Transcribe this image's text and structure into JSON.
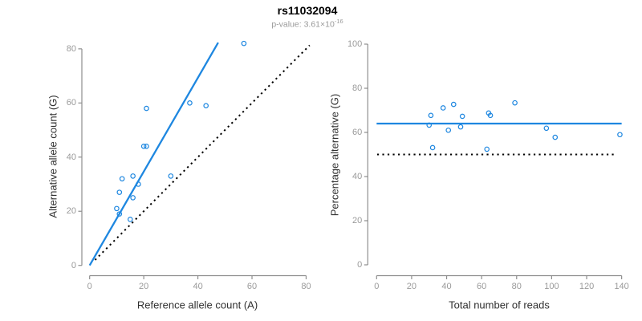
{
  "header": {
    "title": "rs11032094",
    "p_value_label": "p-value: 3.61×10",
    "p_value_exponent": "-16"
  },
  "colors": {
    "accent_blue": "#1e87e0",
    "dotted_line": "#000000",
    "axis": "#8e8e8e",
    "tick_text": "#9a9a9a",
    "label_text": "#303030",
    "subtitle_text": "#9a9a9a"
  },
  "chart_data": [
    {
      "type": "scatter",
      "panel": "allele-counts",
      "xlabel": "Reference allele count (A)",
      "ylabel": "Alternative allele count (G)",
      "xlim": [
        0,
        80
      ],
      "ylim": [
        0,
        80
      ],
      "xticks": [
        0,
        20,
        40,
        60,
        80
      ],
      "yticks": [
        0,
        20,
        40,
        60,
        80
      ],
      "grid": false,
      "point_style": "open-circle",
      "point_color": "#1e87e0",
      "points": [
        [
          10,
          21
        ],
        [
          11,
          19
        ],
        [
          11,
          27
        ],
        [
          12,
          32
        ],
        [
          15,
          17
        ],
        [
          16,
          25
        ],
        [
          16,
          33
        ],
        [
          18,
          30
        ],
        [
          20,
          44
        ],
        [
          21,
          44
        ],
        [
          21,
          58
        ],
        [
          30,
          33
        ],
        [
          37,
          60
        ],
        [
          43,
          59
        ],
        [
          57,
          82
        ]
      ],
      "lines": [
        {
          "name": "regression-line",
          "style": "solid",
          "color": "#1e87e0",
          "from": [
            0,
            0
          ],
          "to": [
            47.5,
            82.3
          ]
        },
        {
          "name": "identity-line",
          "style": "dotted",
          "color": "#000000",
          "from": [
            2,
            2
          ],
          "to": [
            81.3,
            81.3
          ]
        }
      ]
    },
    {
      "type": "scatter",
      "panel": "percentage-vs-depth",
      "xlabel": "Total number of reads",
      "ylabel": "Percentage alternative (G)",
      "xlim": [
        0,
        140
      ],
      "ylim": [
        0,
        100
      ],
      "xticks": [
        0,
        20,
        40,
        60,
        80,
        100,
        120,
        140
      ],
      "yticks": [
        0,
        20,
        40,
        60,
        80,
        100
      ],
      "grid": false,
      "point_style": "open-circle",
      "point_color": "#1e87e0",
      "points": [
        [
          31,
          67.7
        ],
        [
          30,
          63.3
        ],
        [
          38,
          71.1
        ],
        [
          44,
          72.7
        ],
        [
          32,
          53.1
        ],
        [
          41,
          61.0
        ],
        [
          49,
          67.3
        ],
        [
          48,
          62.5
        ],
        [
          64,
          68.8
        ],
        [
          65,
          67.7
        ],
        [
          79,
          73.4
        ],
        [
          63,
          52.4
        ],
        [
          97,
          61.9
        ],
        [
          102,
          57.8
        ],
        [
          139,
          59.0
        ]
      ],
      "lines": [
        {
          "name": "mean-percentage-line",
          "style": "solid",
          "color": "#1e87e0",
          "from": [
            0,
            64
          ],
          "to": [
            140,
            64
          ]
        },
        {
          "name": "fifty-percent-line",
          "style": "dotted",
          "color": "#000000",
          "from": [
            0.3,
            50
          ],
          "to": [
            137,
            50
          ]
        }
      ]
    }
  ]
}
